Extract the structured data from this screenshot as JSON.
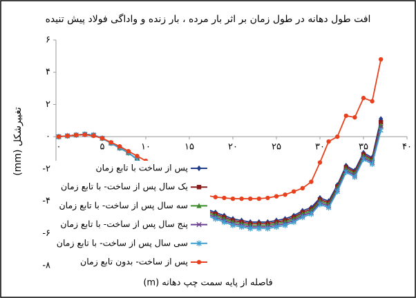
{
  "chart_data": {
    "type": "line",
    "title": "افت طول دهانه در طول زمان بر اثر بار مرده ، بار زنده و واداگی فولاد پیش تنیده",
    "x_label": "فاصله از پایه سمت چپ دهانه (m)",
    "y_label": "تغییرشکل (mm)",
    "xlim": [
      0,
      40
    ],
    "ylim": [
      -8,
      6
    ],
    "xticks": [
      {
        "value": 0,
        "label": "۰"
      },
      {
        "value": 5,
        "label": "۵"
      },
      {
        "value": 10,
        "label": "۱۰"
      },
      {
        "value": 15,
        "label": "۱۵"
      },
      {
        "value": 20,
        "label": "۲۰"
      },
      {
        "value": 25,
        "label": "۲۵"
      },
      {
        "value": 30,
        "label": "۳۰"
      },
      {
        "value": 35,
        "label": "۳۵"
      },
      {
        "value": 40,
        "label": "۴۰"
      }
    ],
    "yticks": [
      {
        "value": -8,
        "label": "-۸"
      },
      {
        "value": -6,
        "label": "-۶"
      },
      {
        "value": -4,
        "label": "-۴"
      },
      {
        "value": -2,
        "label": "-۲"
      },
      {
        "value": 0,
        "label": "۰"
      },
      {
        "value": 2,
        "label": "۲"
      },
      {
        "value": 4,
        "label": "۴"
      },
      {
        "value": 6,
        "label": "۶"
      }
    ],
    "legend": "left",
    "x": [
      0,
      1,
      2,
      3,
      4,
      5,
      6,
      7,
      8,
      9,
      10,
      11,
      12,
      13,
      14,
      15,
      16,
      17,
      18,
      19,
      20,
      21,
      22,
      23,
      24,
      25,
      26,
      27,
      28,
      29,
      30,
      31,
      32,
      33,
      34,
      35,
      36,
      37
    ],
    "series": [
      {
        "name": "پس از ساخت با تابع زمان",
        "color": "#1f3c8c",
        "marker": "diamond",
        "values": [
          0,
          0.05,
          0.1,
          0.15,
          0.1,
          -0.1,
          -0.4,
          -0.7,
          -1.0,
          -1.4,
          -1.8,
          -2.3,
          -2.8,
          -3.2,
          -3.6,
          -3.9,
          -4.2,
          -4.5,
          -4.7,
          -4.9,
          -5.1,
          -5.2,
          -5.3,
          -5.3,
          -5.3,
          -5.2,
          -5.1,
          -4.9,
          -4.6,
          -4.4,
          -3.8,
          -4.0,
          -3.0,
          -1.8,
          -2.1,
          -1.0,
          -1.3,
          1.1
        ]
      },
      {
        "name": "یک سال پس از ساخت- با تابع زمان",
        "color": "#8b1a1a",
        "marker": "square",
        "values": [
          0,
          0.05,
          0.1,
          0.15,
          0.1,
          -0.1,
          -0.4,
          -0.7,
          -1.0,
          -1.4,
          -1.9,
          -2.4,
          -2.9,
          -3.3,
          -3.7,
          -4.0,
          -4.3,
          -4.6,
          -4.8,
          -5.0,
          -5.2,
          -5.3,
          -5.4,
          -5.4,
          -5.4,
          -5.3,
          -5.2,
          -5.0,
          -4.7,
          -4.5,
          -3.9,
          -4.1,
          -3.1,
          -1.9,
          -2.2,
          -1.1,
          -1.4,
          0.9
        ]
      },
      {
        "name": "سه سال پس از ساخت- با تابع زمان",
        "color": "#3a8a2a",
        "marker": "triangle",
        "values": [
          0,
          0.05,
          0.1,
          0.15,
          0.1,
          -0.1,
          -0.4,
          -0.7,
          -1.0,
          -1.4,
          -2.0,
          -2.5,
          -3.0,
          -3.4,
          -3.8,
          -4.1,
          -4.4,
          -4.7,
          -4.9,
          -5.1,
          -5.3,
          -5.4,
          -5.5,
          -5.5,
          -5.5,
          -5.4,
          -5.3,
          -5.1,
          -4.8,
          -4.6,
          -4.0,
          -4.2,
          -3.2,
          -2.0,
          -2.3,
          -1.2,
          -1.5,
          0.7
        ]
      },
      {
        "name": "پنج سال پس از ساخت- با تابع زمان",
        "color": "#6a3d8f",
        "marker": "cross",
        "values": [
          0,
          0.05,
          0.1,
          0.15,
          0.1,
          -0.1,
          -0.4,
          -0.7,
          -1.0,
          -1.4,
          -2.1,
          -2.6,
          -3.1,
          -3.5,
          -3.9,
          -4.2,
          -4.5,
          -4.8,
          -5.0,
          -5.2,
          -5.4,
          -5.5,
          -5.6,
          -5.6,
          -5.6,
          -5.5,
          -5.4,
          -5.2,
          -4.9,
          -4.7,
          -4.1,
          -4.3,
          -3.3,
          -2.1,
          -2.4,
          -1.3,
          -1.6,
          0.6
        ]
      },
      {
        "name": "سی سال پس از ساخت- با تابع زمان",
        "color": "#3fa0d0",
        "marker": "star",
        "values": [
          0,
          0.05,
          0.1,
          0.15,
          0.1,
          -0.1,
          -0.4,
          -0.7,
          -1.0,
          -1.4,
          -2.2,
          -2.7,
          -3.2,
          -3.6,
          -4.0,
          -4.3,
          -4.6,
          -4.9,
          -5.1,
          -5.3,
          -5.5,
          -5.6,
          -5.7,
          -5.7,
          -5.7,
          -5.6,
          -5.5,
          -5.3,
          -5.0,
          -4.8,
          -4.2,
          -4.4,
          -3.4,
          -2.2,
          -2.5,
          -1.4,
          -1.7,
          0.4
        ]
      },
      {
        "name": "پس از ساخت- بدون تابع زمان",
        "color": "#e8401c",
        "marker": "circle",
        "values": [
          0,
          0.05,
          0.1,
          0.12,
          0.05,
          -0.1,
          -0.35,
          -0.6,
          -0.9,
          -1.2,
          -1.5,
          -1.9,
          -2.3,
          -2.7,
          -3.0,
          -3.3,
          -3.5,
          -3.65,
          -3.75,
          -3.8,
          -3.85,
          -3.85,
          -3.85,
          -3.85,
          -3.8,
          -3.7,
          -3.6,
          -3.4,
          -3.2,
          -2.8,
          -1.6,
          -0.3,
          0,
          1.3,
          1.2,
          2.4,
          2.2,
          4.8
        ]
      }
    ]
  }
}
